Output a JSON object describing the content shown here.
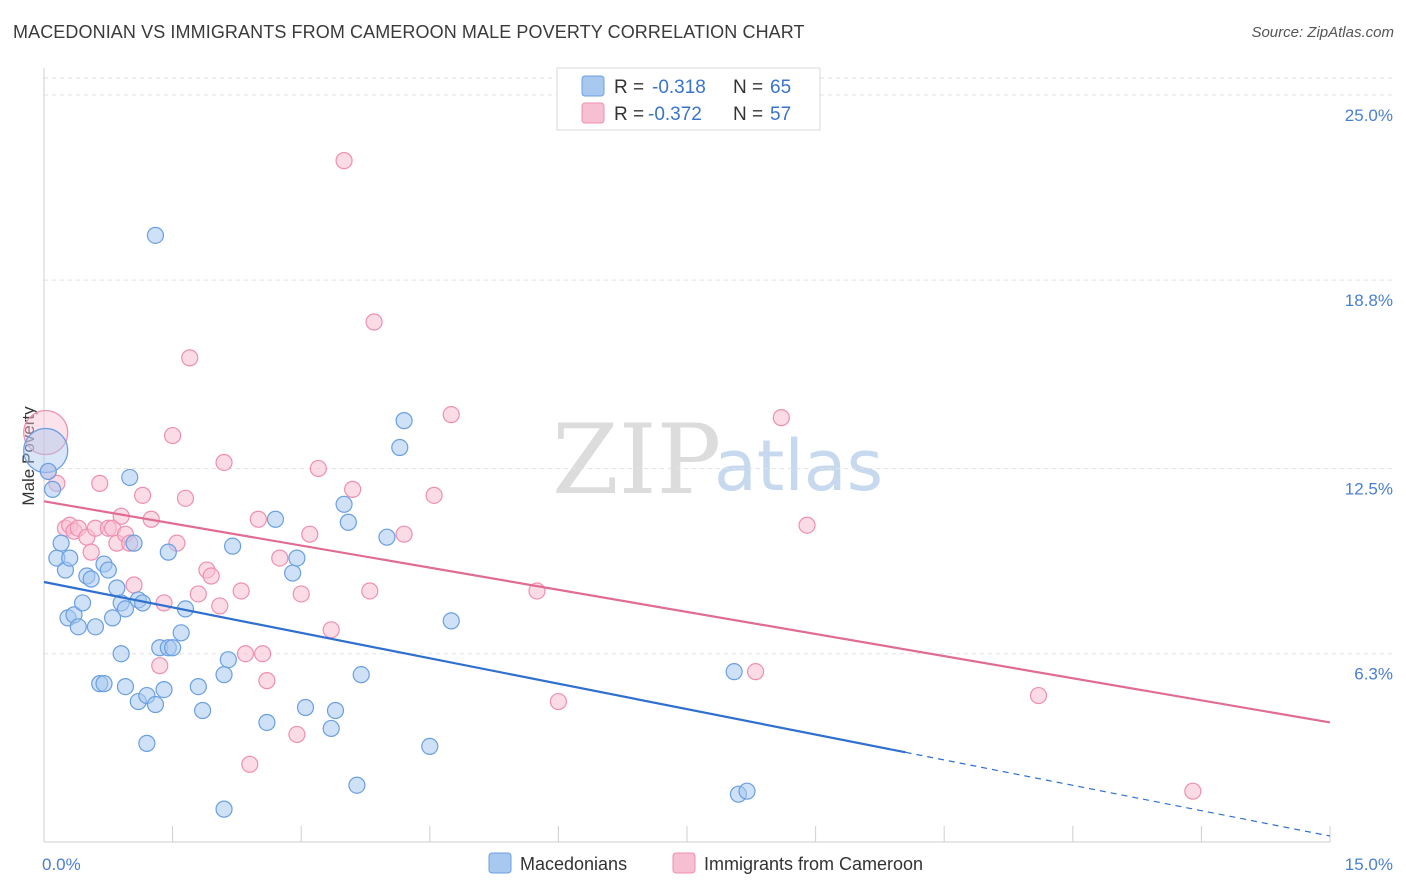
{
  "header": {
    "title": "MACEDONIAN VS IMMIGRANTS FROM CAMEROON MALE POVERTY CORRELATION CHART",
    "source": "Source: ZipAtlas.com"
  },
  "watermark": {
    "zip": "ZIP",
    "atlas": "atlas"
  },
  "colors": {
    "blue_fill": "#a8c8f0",
    "blue_stroke": "#6a9fe0",
    "blue_line": "#2f6fd0",
    "pink_fill": "#f7bfd2",
    "pink_stroke": "#ef8fb0",
    "pink_line": "#e06b95",
    "grid": "#e2e2e2",
    "tick_text": "#4a7fd0"
  },
  "legend": {
    "rows": [
      {
        "r_label": "R =",
        "r_value": "-0.318",
        "n_label": "N =",
        "n_value": "65"
      },
      {
        "r_label": "R =",
        "r_value": "-0.372",
        "n_label": "N =",
        "n_value": "57"
      }
    ]
  },
  "chart_data": {
    "type": "scatter",
    "title": "MACEDONIAN VS IMMIGRANTS FROM CAMEROON MALE POVERTY CORRELATION CHART",
    "xlabel": "",
    "ylabel": "Male Poverty",
    "xlim": [
      0,
      15
    ],
    "ylim": [
      0,
      25.9
    ],
    "x_tick_labels": [
      "0.0%",
      "15.0%"
    ],
    "y_ticks": [
      {
        "value": 6.3,
        "label": "6.3%"
      },
      {
        "value": 12.5,
        "label": "12.5%"
      },
      {
        "value": 18.8,
        "label": "18.8%"
      },
      {
        "value": 25.0,
        "label": "25.0%"
      }
    ],
    "grid": "horizontal dashed",
    "legend_position": "top-center",
    "series": [
      {
        "name": "Macedonians",
        "r": -0.318,
        "n": 65,
        "trend": {
          "x0": 0,
          "y0": 8.7,
          "x1": 10.05,
          "y1": 3.0,
          "dashed_to_x": 15,
          "dashed_to_y": 0.2
        },
        "points": [
          [
            0.02,
            13.1
          ],
          [
            0.05,
            12.4
          ],
          [
            0.1,
            11.8
          ],
          [
            0.15,
            9.5
          ],
          [
            0.2,
            10.0
          ],
          [
            0.25,
            9.1
          ],
          [
            0.3,
            9.5
          ],
          [
            0.28,
            7.5
          ],
          [
            0.35,
            7.6
          ],
          [
            0.4,
            7.2
          ],
          [
            0.45,
            8.0
          ],
          [
            0.5,
            8.9
          ],
          [
            0.55,
            8.8
          ],
          [
            0.6,
            7.2
          ],
          [
            0.7,
            9.3
          ],
          [
            0.75,
            9.1
          ],
          [
            0.8,
            7.5
          ],
          [
            0.85,
            8.5
          ],
          [
            0.9,
            8.0
          ],
          [
            0.95,
            7.8
          ],
          [
            1.05,
            10.0
          ],
          [
            1.1,
            8.1
          ],
          [
            1.15,
            8.0
          ],
          [
            1.0,
            12.2
          ],
          [
            0.65,
            5.3
          ],
          [
            0.7,
            5.3
          ],
          [
            0.95,
            5.2
          ],
          [
            1.1,
            4.7
          ],
          [
            1.2,
            4.9
          ],
          [
            1.3,
            4.6
          ],
          [
            1.2,
            3.3
          ],
          [
            1.4,
            5.1
          ],
          [
            1.35,
            6.5
          ],
          [
            1.45,
            6.5
          ],
          [
            1.5,
            6.5
          ],
          [
            1.65,
            7.8
          ],
          [
            1.6,
            7.0
          ],
          [
            1.45,
            9.7
          ],
          [
            1.8,
            5.2
          ],
          [
            1.85,
            4.4
          ],
          [
            2.1,
            5.6
          ],
          [
            2.15,
            6.1
          ],
          [
            2.2,
            9.9
          ],
          [
            2.1,
            1.1
          ],
          [
            2.6,
            4.0
          ],
          [
            2.7,
            10.8
          ],
          [
            2.9,
            9.0
          ],
          [
            2.95,
            9.5
          ],
          [
            3.05,
            4.5
          ],
          [
            3.35,
            3.8
          ],
          [
            3.4,
            4.4
          ],
          [
            3.5,
            11.3
          ],
          [
            3.55,
            10.7
          ],
          [
            3.7,
            5.6
          ],
          [
            3.65,
            1.9
          ],
          [
            4.0,
            10.2
          ],
          [
            4.15,
            13.2
          ],
          [
            4.2,
            14.1
          ],
          [
            4.5,
            3.2
          ],
          [
            4.75,
            7.4
          ],
          [
            1.3,
            20.3
          ],
          [
            8.05,
            5.7
          ],
          [
            8.1,
            1.6
          ],
          [
            8.2,
            1.7
          ],
          [
            0.9,
            6.3
          ]
        ]
      },
      {
        "name": "Immigrants from Cameroon",
        "r": -0.372,
        "n": 57,
        "trend": {
          "x0": 0,
          "y0": 11.4,
          "x1": 15,
          "y1": 4.0
        },
        "points": [
          [
            0.02,
            13.7
          ],
          [
            0.05,
            12.4
          ],
          [
            0.15,
            12.0
          ],
          [
            0.25,
            10.5
          ],
          [
            0.3,
            10.6
          ],
          [
            0.35,
            10.4
          ],
          [
            0.4,
            10.5
          ],
          [
            0.5,
            10.2
          ],
          [
            0.55,
            9.7
          ],
          [
            0.6,
            10.5
          ],
          [
            0.65,
            12.0
          ],
          [
            0.75,
            10.5
          ],
          [
            0.8,
            10.5
          ],
          [
            0.85,
            10.0
          ],
          [
            0.9,
            10.9
          ],
          [
            0.95,
            10.3
          ],
          [
            1.0,
            10.0
          ],
          [
            1.05,
            8.6
          ],
          [
            1.15,
            11.6
          ],
          [
            1.25,
            10.8
          ],
          [
            1.4,
            8.0
          ],
          [
            1.5,
            13.6
          ],
          [
            1.55,
            10.0
          ],
          [
            1.65,
            11.5
          ],
          [
            1.7,
            16.2
          ],
          [
            1.8,
            8.3
          ],
          [
            1.9,
            9.1
          ],
          [
            1.95,
            8.9
          ],
          [
            2.05,
            7.9
          ],
          [
            2.1,
            12.7
          ],
          [
            2.3,
            8.4
          ],
          [
            2.35,
            6.3
          ],
          [
            2.4,
            2.6
          ],
          [
            2.5,
            10.8
          ],
          [
            2.55,
            6.3
          ],
          [
            2.6,
            5.4
          ],
          [
            2.75,
            9.5
          ],
          [
            2.95,
            3.6
          ],
          [
            3.0,
            8.3
          ],
          [
            3.1,
            10.3
          ],
          [
            3.2,
            12.5
          ],
          [
            3.35,
            7.1
          ],
          [
            3.5,
            22.8
          ],
          [
            3.6,
            11.8
          ],
          [
            3.85,
            17.4
          ],
          [
            4.2,
            10.3
          ],
          [
            4.55,
            11.6
          ],
          [
            4.75,
            14.3
          ],
          [
            1.35,
            5.9
          ],
          [
            3.8,
            8.4
          ],
          [
            5.75,
            8.4
          ],
          [
            6.0,
            4.7
          ],
          [
            8.3,
            5.7
          ],
          [
            8.6,
            14.2
          ],
          [
            8.9,
            10.6
          ],
          [
            11.6,
            4.9
          ],
          [
            13.4,
            1.7
          ]
        ]
      }
    ]
  }
}
